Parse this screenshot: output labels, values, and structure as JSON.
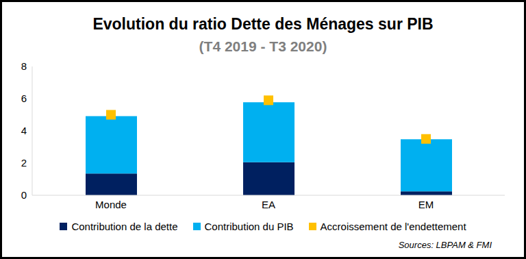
{
  "chart_data": {
    "type": "bar",
    "title": "Evolution du ratio Dette des Ménages sur PIB",
    "subtitle": "(T4 2019 - T3 2020)",
    "annotations": [
      "Sources: LBPAM & FMI"
    ],
    "categories": [
      "Monde",
      "EA",
      "EM"
    ],
    "series": [
      {
        "name": "Contribution de la dette",
        "color": "#002060",
        "type": "bar",
        "values": [
          1.35,
          2.05,
          0.25
        ]
      },
      {
        "name": "Contribution du PIB",
        "color": "#00B0F0",
        "type": "bar",
        "values": [
          3.57,
          3.73,
          3.23
        ]
      },
      {
        "name": "Accroissement de l'endettement",
        "color": "#FFC000",
        "type": "scatter",
        "marker": "square",
        "values": [
          5.0,
          5.9,
          3.5
        ]
      }
    ],
    "stacked": true,
    "ylim": [
      0,
      8
    ],
    "yticks": [
      0,
      2,
      4,
      6,
      8
    ],
    "grid": false,
    "legend": "bottom"
  }
}
